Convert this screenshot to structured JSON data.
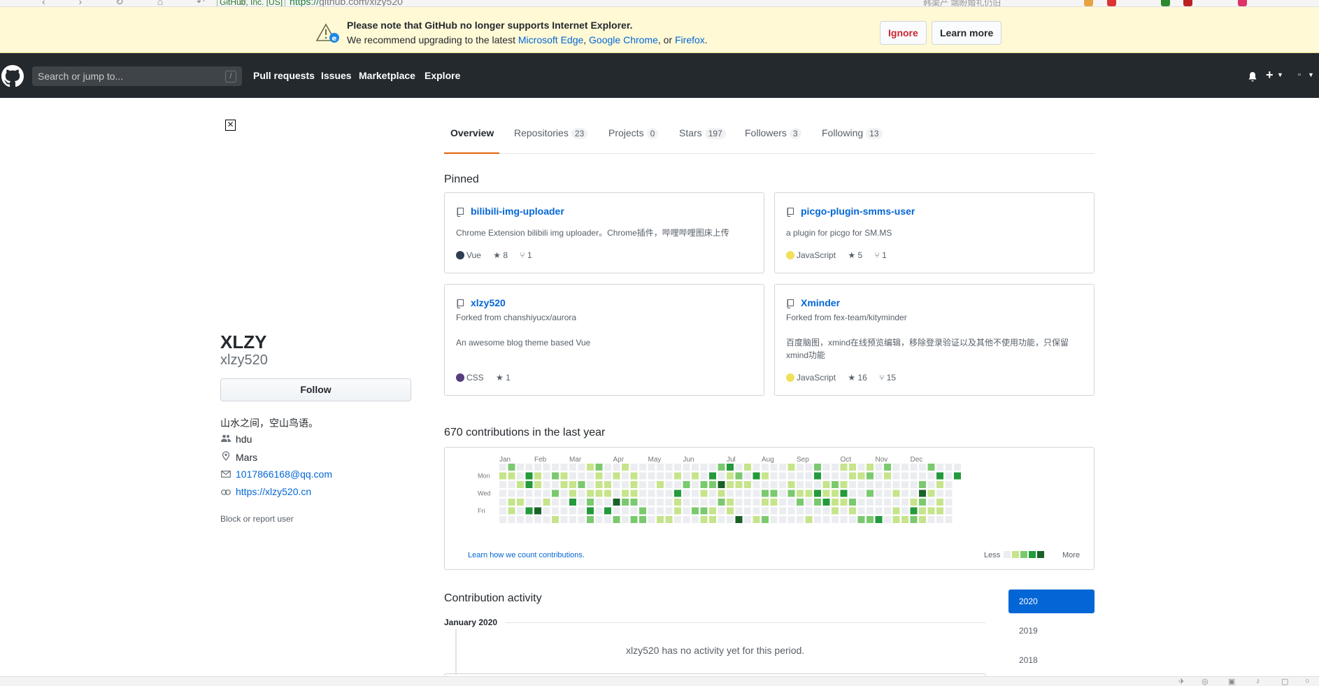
{
  "browser": {
    "site_badge": "GitHub, Inc. [US]",
    "url_protocol": "https://",
    "url_rest": "github.com/xlzy520",
    "search_hint": "韩渠产 端盼婚礼仍旧"
  },
  "ie_notice": {
    "title": "Please note that GitHub no longer supports Internet Explorer.",
    "text_prefix": "We recommend upgrading to the latest ",
    "link1": "Microsoft Edge",
    "sep1": ", ",
    "link2": "Google Chrome",
    "sep2": ", or ",
    "link3": "Firefox",
    "suffix": ".",
    "ignore_label": "Ignore",
    "learn_label": "Learn more"
  },
  "header": {
    "search_placeholder": "Search or jump to...",
    "search_key": "/",
    "nav": [
      "Pull requests",
      "Issues",
      "Marketplace",
      "Explore"
    ]
  },
  "profile": {
    "name": "XLZY",
    "login": "xlzy520",
    "follow_label": "Follow",
    "bio": "山水之间，空山鸟语。",
    "company": "hdu",
    "location": "Mars",
    "email": "1017866168@qq.com",
    "website": "https://xlzy520.cn",
    "block_label": "Block or report user"
  },
  "tabs": [
    {
      "label": "Overview",
      "count": ""
    },
    {
      "label": "Repositories",
      "count": "23"
    },
    {
      "label": "Projects",
      "count": "0"
    },
    {
      "label": "Stars",
      "count": "197"
    },
    {
      "label": "Followers",
      "count": "3"
    },
    {
      "label": "Following",
      "count": "13"
    }
  ],
  "pinned_heading": "Pinned",
  "pinned": [
    {
      "name": "bilibili-img-uploader",
      "fork": "",
      "desc": "Chrome Extension bilibili img uploader。Chrome插件，哔哩哔哩图床上传",
      "lang": "Vue",
      "lang_color": "#2c3e50",
      "stars": "8",
      "forks": "1"
    },
    {
      "name": "picgo-plugin-smms-user",
      "fork": "",
      "desc": "a plugin for picgo for SM.MS",
      "lang": "JavaScript",
      "lang_color": "#f1e05a",
      "stars": "5",
      "forks": "1"
    },
    {
      "name": "xlzy520",
      "fork": "Forked from chanshiyucx/aurora",
      "desc": "An awesome blog theme based Vue",
      "lang": "CSS",
      "lang_color": "#563d7c",
      "stars": "1",
      "forks": ""
    },
    {
      "name": "Xminder",
      "fork": "Forked from fex-team/kityminder",
      "desc": "百度脑图，xmind在线预览编辑，移除登录验证以及其他不使用功能，只保留xmind功能",
      "lang": "JavaScript",
      "lang_color": "#f1e05a",
      "stars": "16",
      "forks": "15"
    }
  ],
  "contributions": {
    "heading": "670 contributions in the last year",
    "months": [
      "Jan",
      "Feb",
      "Mar",
      "Apr",
      "May",
      "Jun",
      "Jul",
      "Aug",
      "Sep",
      "Oct",
      "Nov",
      "Dec"
    ],
    "days": [
      "Mon",
      "Wed",
      "Fri"
    ],
    "learn_label": "Learn how we count contributions.",
    "less_label": "Less",
    "more_label": "More",
    "colors": [
      "#ebedf0",
      "#c6e48b",
      "#7bc96f",
      "#239a3b",
      "#196127"
    ]
  },
  "activity": {
    "heading": "Contribution activity",
    "month": "January 2020",
    "empty_text": "xlzy520 has no activity yet for this period.",
    "years": [
      "2020",
      "2019",
      "2018"
    ]
  }
}
